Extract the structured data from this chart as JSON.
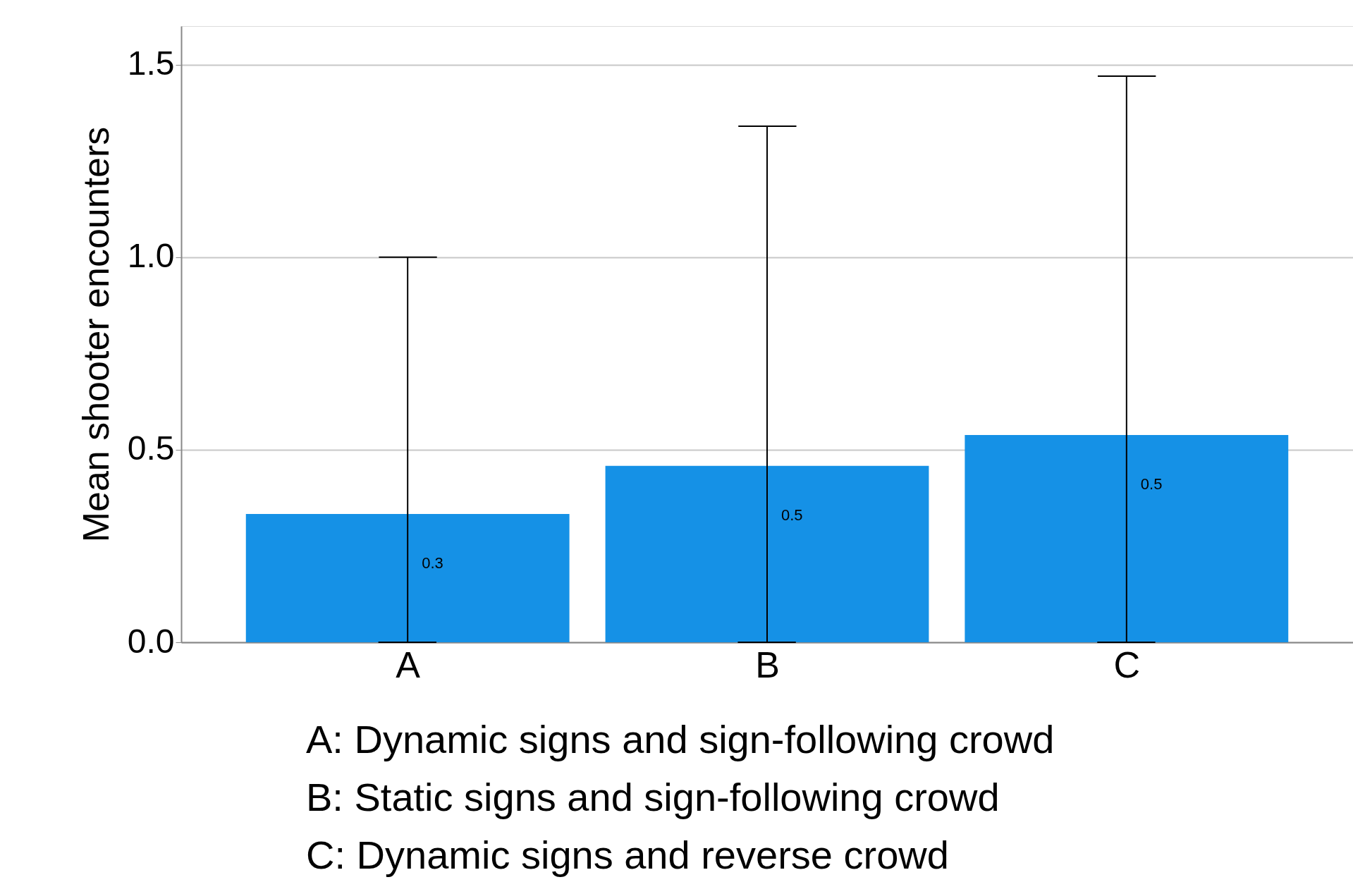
{
  "chart_data": {
    "type": "bar",
    "ylabel": "Mean shooter encounters",
    "categories": [
      "A",
      "B",
      "C"
    ],
    "values": [
      0.333,
      0.458,
      0.538
    ],
    "errors": [
      [
        0,
        1.0
      ],
      [
        0,
        1.34
      ],
      [
        0,
        1.47
      ]
    ],
    "value_labels": [
      "0.3",
      "0.5",
      "0.5"
    ],
    "color": "#1591e6",
    "ylim": [
      0,
      1.6
    ],
    "yticks": [
      {
        "value": 0,
        "label": "0.0"
      },
      0.5,
      {
        "value": 1,
        "label": "1.0"
      },
      1.5
    ],
    "grid": "y",
    "annotations": [
      "A: Dynamic signs and sign-following crowd",
      "B: Static signs and sign-following crowd",
      "C: Dynamic signs and reverse crowd"
    ]
  }
}
